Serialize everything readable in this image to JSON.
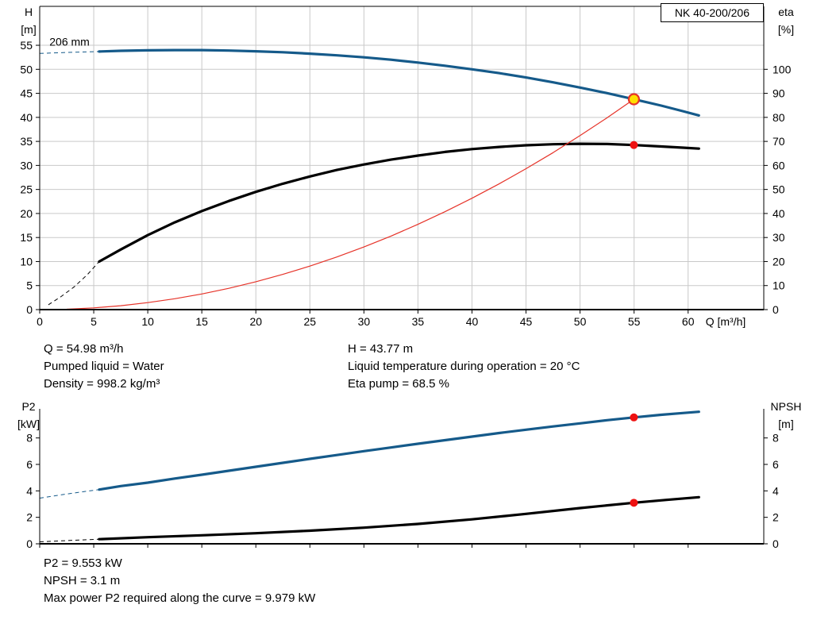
{
  "chart_data": [
    {
      "type": "line",
      "title": "NK 40-200/206",
      "grid": true,
      "grid_color": "#c9c9c9",
      "x_axis": {
        "label": "Q [m³/h]",
        "min": 0,
        "max": 67,
        "tick_step": 5,
        "tick_max": 60,
        "show_tick_labels": true
      },
      "y_left": {
        "label": [
          "H",
          "[m]"
        ],
        "min": 0,
        "max": 63.1,
        "tick_step": 5,
        "tick_max": 55
      },
      "y_right": {
        "label": [
          "eta",
          "[%]"
        ],
        "min": 0,
        "max": 126.2,
        "tick_step": 10,
        "tick_max": 100
      },
      "series": [
        {
          "name": "head-curve",
          "axis": "left",
          "color": "#155a8a",
          "width": 3.2,
          "dash_points": [
            [
              0,
              53.3
            ],
            [
              1.8,
              53.45
            ],
            [
              3.7,
              53.58
            ],
            [
              5.5,
              53.7
            ]
          ],
          "points": [
            [
              5.5,
              53.7
            ],
            [
              7.5,
              53.85
            ],
            [
              10,
              53.95
            ],
            [
              12.5,
              54
            ],
            [
              15,
              54
            ],
            [
              17.5,
              53.9
            ],
            [
              20,
              53.75
            ],
            [
              22.5,
              53.55
            ],
            [
              25,
              53.25
            ],
            [
              27.5,
              52.9
            ],
            [
              30,
              52.5
            ],
            [
              32.5,
              52
            ],
            [
              35,
              51.4
            ],
            [
              37.5,
              50.75
            ],
            [
              40,
              50
            ],
            [
              42.5,
              49.2
            ],
            [
              45,
              48.3
            ],
            [
              47.5,
              47.3
            ],
            [
              50,
              46.2
            ],
            [
              52.5,
              45.05
            ],
            [
              54.98,
              43.77
            ],
            [
              57.5,
              42.45
            ],
            [
              59.5,
              41.3
            ],
            [
              61,
              40.4
            ]
          ]
        },
        {
          "name": "efficiency-curve",
          "axis": "right",
          "color": "#000000",
          "width": 3.2,
          "dash_points": [
            [
              0.8,
              2
            ],
            [
              2,
              5.5
            ],
            [
              3.2,
              9.5
            ],
            [
              4.4,
              14.5
            ],
            [
              5.5,
              20
            ]
          ],
          "points": [
            [
              5.5,
              20
            ],
            [
              7.5,
              25
            ],
            [
              10,
              31
            ],
            [
              12.5,
              36.3
            ],
            [
              15,
              41
            ],
            [
              17.5,
              45.2
            ],
            [
              20,
              49
            ],
            [
              22.5,
              52.4
            ],
            [
              25,
              55.4
            ],
            [
              27.5,
              58.1
            ],
            [
              30,
              60.4
            ],
            [
              32.5,
              62.4
            ],
            [
              35,
              64.1
            ],
            [
              37.5,
              65.6
            ],
            [
              40,
              66.8
            ],
            [
              42.5,
              67.7
            ],
            [
              45,
              68.4
            ],
            [
              47.5,
              68.8
            ],
            [
              50,
              69
            ],
            [
              52.5,
              68.9
            ],
            [
              54.98,
              68.5
            ],
            [
              57.5,
              67.9
            ],
            [
              59.5,
              67.4
            ],
            [
              61,
              67
            ]
          ]
        },
        {
          "name": "system-curve",
          "axis": "left",
          "color": "#e63329",
          "width": 1.2,
          "points": [
            [
              0,
              0
            ],
            [
              2.5,
              0.09
            ],
            [
              5,
              0.36
            ],
            [
              7.5,
              0.81
            ],
            [
              10,
              1.45
            ],
            [
              12.5,
              2.26
            ],
            [
              15,
              3.26
            ],
            [
              17.5,
              4.43
            ],
            [
              20,
              5.79
            ],
            [
              22.5,
              7.33
            ],
            [
              25,
              9.05
            ],
            [
              27.5,
              10.95
            ],
            [
              30,
              13.03
            ],
            [
              32.5,
              15.3
            ],
            [
              35,
              17.74
            ],
            [
              37.5,
              20.36
            ],
            [
              40,
              23.17
            ],
            [
              42.5,
              26.15
            ],
            [
              45,
              29.32
            ],
            [
              47.5,
              32.66
            ],
            [
              50,
              36.2
            ],
            [
              52.5,
              39.91
            ],
            [
              54.98,
              43.77
            ]
          ]
        }
      ],
      "markers": [
        {
          "name": "duty-point-marker",
          "axis": "left",
          "x": 54.98,
          "y": 43.77,
          "r": 6.5,
          "fill": "#ffdf00",
          "stroke": "#e63329",
          "stroke_width": 2.2
        },
        {
          "name": "efficiency-point-marker",
          "axis": "right",
          "x": 54.98,
          "y": 68.5,
          "r": 5,
          "fill": "#ee1111"
        }
      ],
      "annotations": [
        {
          "text": "206 mm",
          "x": 0.9,
          "y": 54.9
        }
      ]
    },
    {
      "type": "line",
      "title": "",
      "grid": false,
      "grid_color": "#c9c9c9",
      "x_axis": {
        "label": "",
        "min": 0,
        "max": 67,
        "tick_step": 5,
        "tick_max": 60,
        "show_tick_labels": false
      },
      "y_left": {
        "label": [
          "P2",
          "[kW]"
        ],
        "min": 0,
        "max": 10.2,
        "tick_step": 2,
        "tick_max": 8
      },
      "y_right": {
        "label": [
          "NPSH",
          "[m]"
        ],
        "min": 0,
        "max": 10.2,
        "tick_step": 2,
        "tick_max": 8
      },
      "series": [
        {
          "name": "p2-curve",
          "axis": "left",
          "color": "#155a8a",
          "width": 3.2,
          "dash_points": [
            [
              0,
              3.45
            ],
            [
              1.8,
              3.68
            ],
            [
              3.7,
              3.9
            ],
            [
              5.5,
              4.1
            ]
          ],
          "points": [
            [
              5.5,
              4.1
            ],
            [
              7.5,
              4.36
            ],
            [
              10,
              4.62
            ],
            [
              12.5,
              4.93
            ],
            [
              15,
              5.22
            ],
            [
              17.5,
              5.52
            ],
            [
              20,
              5.82
            ],
            [
              22.5,
              6.12
            ],
            [
              25,
              6.42
            ],
            [
              27.5,
              6.71
            ],
            [
              30,
              7
            ],
            [
              32.5,
              7.28
            ],
            [
              35,
              7.56
            ],
            [
              37.5,
              7.83
            ],
            [
              40,
              8.1
            ],
            [
              42.5,
              8.37
            ],
            [
              45,
              8.62
            ],
            [
              47.5,
              8.87
            ],
            [
              50,
              9.1
            ],
            [
              52.5,
              9.34
            ],
            [
              54.98,
              9.553
            ],
            [
              57.5,
              9.75
            ],
            [
              59.5,
              9.88
            ],
            [
              61,
              9.979
            ]
          ]
        },
        {
          "name": "npsh-curve",
          "axis": "left",
          "color": "#000000",
          "width": 3.2,
          "dash_points": [
            [
              0,
              0.15
            ],
            [
              2.8,
              0.25
            ],
            [
              5.5,
              0.35
            ]
          ],
          "points": [
            [
              5.5,
              0.35
            ],
            [
              10,
              0.5
            ],
            [
              15,
              0.64
            ],
            [
              20,
              0.8
            ],
            [
              25,
              0.99
            ],
            [
              30,
              1.22
            ],
            [
              35,
              1.5
            ],
            [
              40,
              1.85
            ],
            [
              45,
              2.26
            ],
            [
              50,
              2.7
            ],
            [
              54.98,
              3.1
            ],
            [
              58,
              3.32
            ],
            [
              61,
              3.52
            ]
          ]
        }
      ],
      "markers": [
        {
          "name": "p2-point-marker",
          "axis": "left",
          "x": 54.98,
          "y": 9.553,
          "r": 5,
          "fill": "#ee1111"
        },
        {
          "name": "npsh-point-marker",
          "axis": "left",
          "x": 54.98,
          "y": 3.1,
          "r": 5,
          "fill": "#ee1111"
        }
      ],
      "annotations": []
    }
  ],
  "operating_text": {
    "col1": [
      "Q = 54.98 m³/h",
      "Pumped liquid = Water",
      "Density = 998.2 kg/m³"
    ],
    "col2": [
      "H = 43.77 m",
      "Liquid temperature during operation = 20 °C",
      "Eta pump = 68.5 %"
    ]
  },
  "result_text": [
    "P2 = 9.553 kW",
    "NPSH = 3.1 m",
    "Max power P2 required along the curve = 9.979 kW"
  ]
}
